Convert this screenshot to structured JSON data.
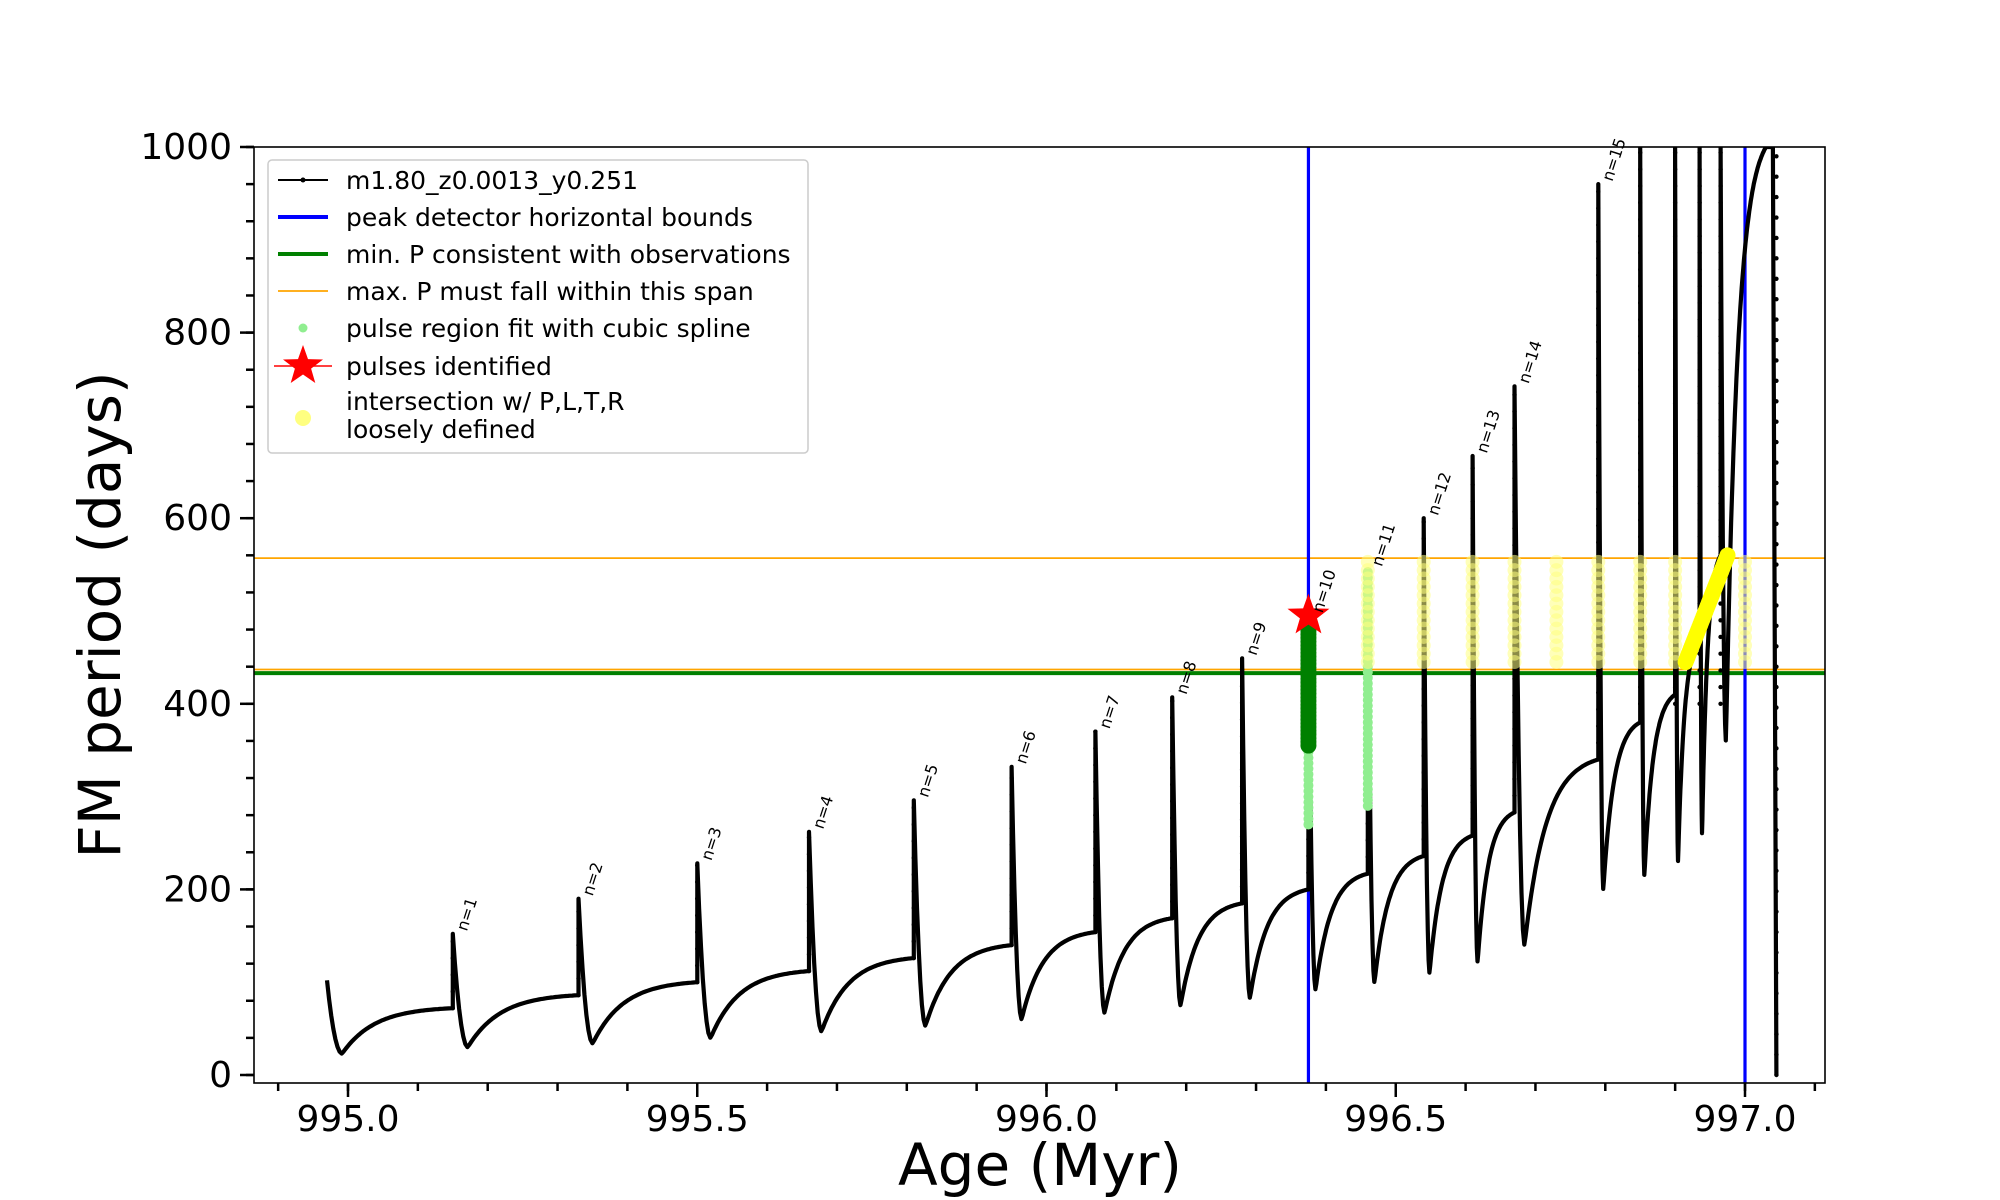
{
  "chart_data": {
    "type": "line",
    "xlabel": "Age (Myr)",
    "ylabel": "FM period (days)",
    "xlim": [
      994.88,
      997.14
    ],
    "ylim": [
      0,
      1000
    ],
    "x_ticks": [
      "995.0",
      "995.5",
      "996.0",
      "996.5",
      "997.0"
    ],
    "y_ticks": [
      "0",
      "200",
      "400",
      "600",
      "800",
      "1000"
    ],
    "legend_position": "upper-left",
    "colors": {
      "model": "#000000",
      "peak_bounds": "#0000ff",
      "min_p": "#008000",
      "max_p_span": "#ffa500",
      "pulse_fit": "#90ee90",
      "pulses_identified": "#ff0000",
      "intersection": "#ffff00"
    },
    "legend": [
      {
        "label": "m1.80_z0.0013_y0.251",
        "kind": "line-marker",
        "color": "#000000"
      },
      {
        "label": "peak detector horizontal bounds",
        "kind": "line",
        "color": "#0000ff"
      },
      {
        "label": "min. P consistent with observations",
        "kind": "line",
        "color": "#008000"
      },
      {
        "label": "max. P must fall within this span",
        "kind": "thin-line",
        "color": "#ffa500"
      },
      {
        "label": "pulse region fit with cubic spline",
        "kind": "dot",
        "color": "#90ee90"
      },
      {
        "label": "pulses identified",
        "kind": "star",
        "color": "#ff0000"
      },
      {
        "label": "intersection w/ P,L,T,R",
        "label2": "loosely defined",
        "kind": "dot-big",
        "color": "#ffff80"
      }
    ],
    "vertical_lines": [
      996.375,
      997.0
    ],
    "min_p_line": 433,
    "max_p_span": [
      437,
      557
    ],
    "pulse_identified": {
      "x": 996.375,
      "y": 495
    },
    "pulses": [
      {
        "label": "n=1",
        "x": 995.15,
        "peak": 152,
        "trough": 23,
        "base": 72
      },
      {
        "label": "n=2",
        "x": 995.33,
        "peak": 190,
        "trough": 30,
        "base": 86
      },
      {
        "label": "n=3",
        "x": 995.5,
        "peak": 228,
        "trough": 34,
        "base": 100
      },
      {
        "label": "n=4",
        "x": 995.66,
        "peak": 262,
        "trough": 40,
        "base": 112
      },
      {
        "label": "n=5",
        "x": 995.81,
        "peak": 296,
        "trough": 47,
        "base": 126
      },
      {
        "label": "n=6",
        "x": 995.95,
        "peak": 332,
        "trough": 53,
        "base": 140
      },
      {
        "label": "n=7",
        "x": 996.07,
        "peak": 370,
        "trough": 60,
        "base": 154
      },
      {
        "label": "n=8",
        "x": 996.18,
        "peak": 407,
        "trough": 67,
        "base": 169
      },
      {
        "label": "n=9",
        "x": 996.28,
        "peak": 449,
        "trough": 75,
        "base": 185
      },
      {
        "label": "n=10",
        "x": 996.375,
        "peak": 495,
        "trough": 83,
        "base": 200
      },
      {
        "label": "n=11",
        "x": 996.46,
        "peak": 545,
        "trough": 92,
        "base": 217
      },
      {
        "label": "n=12",
        "x": 996.54,
        "peak": 600,
        "trough": 100,
        "base": 236
      },
      {
        "label": "n=13",
        "x": 996.61,
        "peak": 667,
        "trough": 110,
        "base": 258
      },
      {
        "label": "n=14",
        "x": 996.67,
        "peak": 742,
        "trough": 122,
        "base": 283
      },
      {
        "label": "n=15",
        "x": 996.79,
        "peak": 960,
        "trough": 140,
        "base": 340
      }
    ]
  }
}
